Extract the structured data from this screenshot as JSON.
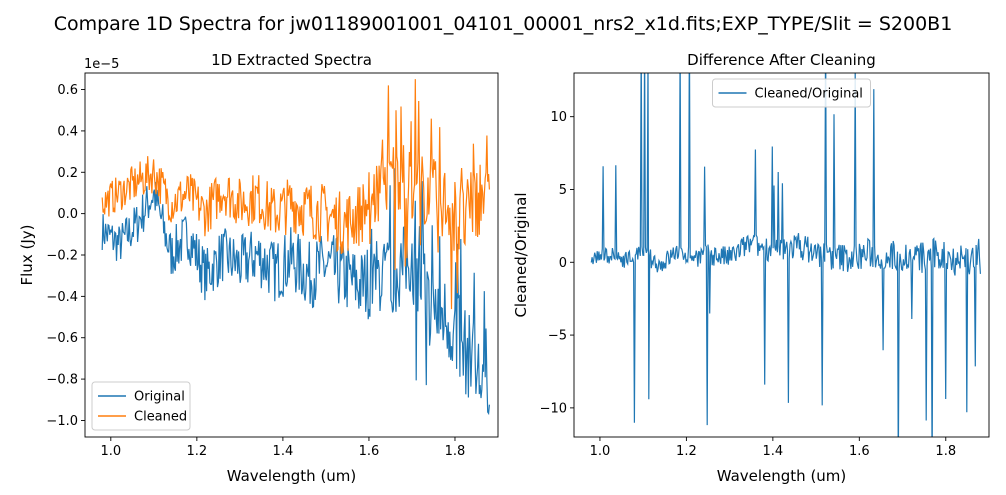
{
  "figure": {
    "suptitle": "Compare 1D Spectra for jw01189001001_04101_00001_nrs2_x1d.fits;EXP_TYPE/Slit = S200B1"
  },
  "chart_data": [
    {
      "type": "line",
      "title": "1D Extracted Spectra",
      "xlabel": "Wavelength (um)",
      "ylabel": "Flux (Jy)",
      "offset_text": "1e−5",
      "xlim": [
        0.94,
        1.9
      ],
      "ylim": [
        -1.08,
        0.68
      ],
      "y_scale_note": "values in units of 1e-5 Jy",
      "xticks": [
        1.0,
        1.2,
        1.4,
        1.6,
        1.8
      ],
      "xtick_labels": [
        "1.0",
        "1.2",
        "1.4",
        "1.6",
        "1.8"
      ],
      "yticks": [
        -1.0,
        -0.8,
        -0.6,
        -0.4,
        -0.2,
        0.0,
        0.2,
        0.4,
        0.6
      ],
      "ytick_labels": [
        "−1.0",
        "−0.8",
        "−0.6",
        "−0.4",
        "−0.2",
        "0.0",
        "0.2",
        "0.4",
        "0.6"
      ],
      "legend": {
        "placement": "lower-left",
        "entries": [
          "Original",
          "Cleaned"
        ]
      },
      "colors": {
        "Original": "#1f77b4",
        "Cleaned": "#ff7f0e"
      },
      "x": [
        0.98,
        1.02,
        1.06,
        1.1,
        1.14,
        1.18,
        1.22,
        1.26,
        1.3,
        1.34,
        1.38,
        1.42,
        1.46,
        1.5,
        1.54,
        1.58,
        1.62,
        1.66,
        1.7,
        1.74,
        1.78,
        1.82,
        1.86,
        1.88
      ],
      "series": [
        {
          "name": "Original",
          "values": [
            -0.08,
            -0.15,
            -0.05,
            0.1,
            -0.2,
            -0.1,
            -0.3,
            -0.2,
            -0.25,
            -0.2,
            -0.28,
            -0.22,
            -0.3,
            -0.25,
            -0.3,
            -0.35,
            -0.3,
            -0.3,
            -0.2,
            -0.45,
            -0.5,
            -0.65,
            -0.8,
            -0.75
          ]
        },
        {
          "name": "Cleaned",
          "values": [
            0.05,
            0.1,
            0.15,
            0.2,
            0.05,
            0.1,
            0.0,
            0.12,
            0.05,
            0.08,
            0.0,
            0.05,
            0.02,
            0.0,
            -0.05,
            0.0,
            0.1,
            0.2,
            0.15,
            0.1,
            0.05,
            -0.05,
            0.1,
            0.0
          ]
        }
      ]
    },
    {
      "type": "line",
      "title": "Difference After Cleaning",
      "xlabel": "Wavelength (um)",
      "ylabel": "Cleaned/Original",
      "xlim": [
        0.94,
        1.9
      ],
      "ylim": [
        -12.0,
        13.0
      ],
      "xticks": [
        1.0,
        1.2,
        1.4,
        1.6,
        1.8
      ],
      "xtick_labels": [
        "1.0",
        "1.2",
        "1.4",
        "1.6",
        "1.8"
      ],
      "yticks": [
        -10,
        -5,
        0,
        5,
        10
      ],
      "ytick_labels": [
        "−10",
        "−5",
        "0",
        "5",
        "10"
      ],
      "legend": {
        "placement": "upper-center",
        "entries": [
          "Cleaned/Original"
        ]
      },
      "colors": {
        "Cleaned/Original": "#1f77b4"
      },
      "x": [
        0.98,
        1.02,
        1.06,
        1.1,
        1.14,
        1.18,
        1.22,
        1.26,
        1.3,
        1.34,
        1.38,
        1.42,
        1.46,
        1.5,
        1.54,
        1.58,
        1.62,
        1.66,
        1.7,
        1.74,
        1.78,
        1.82,
        1.86,
        1.88
      ],
      "series": [
        {
          "name": "Cleaned/Original",
          "values": [
            0.3,
            0.5,
            0.2,
            0.6,
            -0.2,
            0.8,
            0.4,
            0.5,
            0.3,
            1.2,
            1.0,
            0.8,
            1.2,
            0.6,
            0.4,
            0.3,
            0.6,
            0.5,
            0.4,
            0.3,
            0.5,
            0.3,
            0.2,
            0.4
          ]
        }
      ]
    }
  ]
}
